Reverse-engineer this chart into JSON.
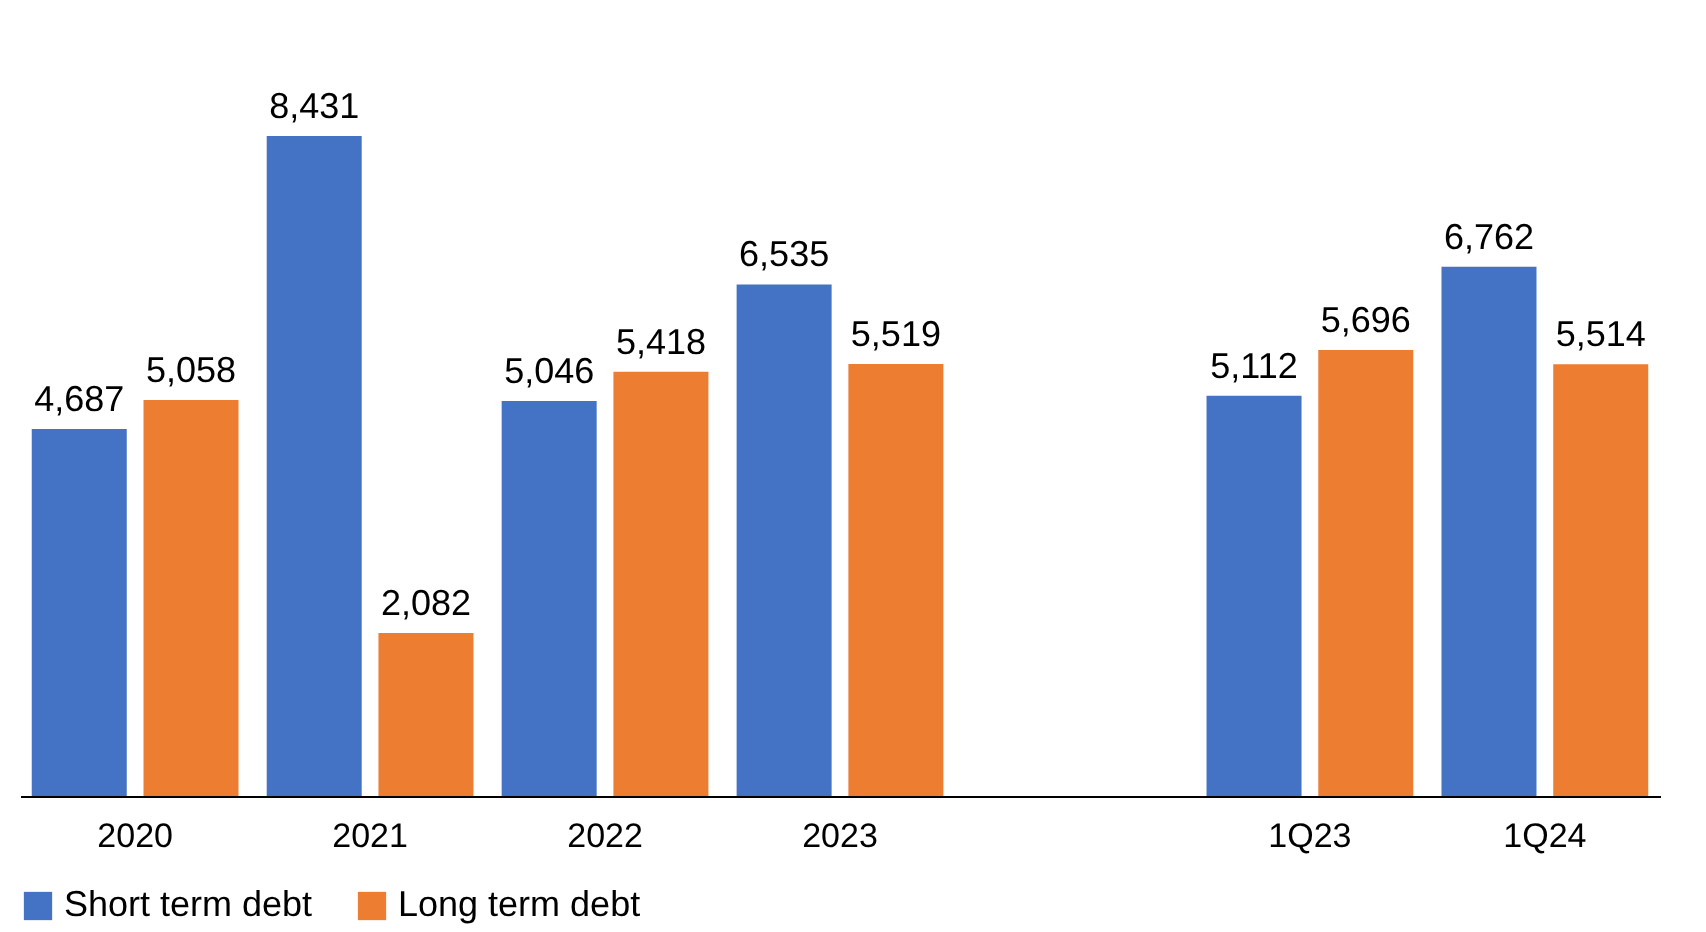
{
  "chart_data": {
    "type": "bar",
    "categories": [
      "2020",
      "2021",
      "2022",
      "2023",
      null,
      "1Q23",
      "1Q24"
    ],
    "series": [
      {
        "name": "Short term debt",
        "color": "#4472c4",
        "values": [
          4687,
          8431,
          5046,
          6535,
          null,
          5112,
          6762
        ],
        "value_labels": [
          "4,687",
          "8,431",
          "5,046",
          "6,535",
          null,
          "5,112",
          "6,762"
        ]
      },
      {
        "name": "Long term debt",
        "color": "#ed7d31",
        "values": [
          5058,
          2082,
          5418,
          5519,
          null,
          5696,
          5514
        ],
        "value_labels": [
          "5,058",
          "2,082",
          "5,418",
          "5,519",
          null,
          "5,696",
          "5,514"
        ]
      }
    ],
    "grid": false,
    "legend": "bottom"
  }
}
